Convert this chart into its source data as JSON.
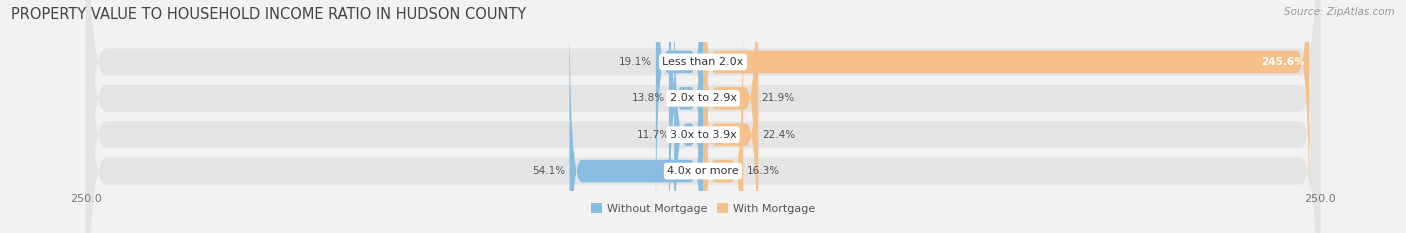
{
  "title": "PROPERTY VALUE TO HOUSEHOLD INCOME RATIO IN HUDSON COUNTY",
  "source": "Source: ZipAtlas.com",
  "categories": [
    "Less than 2.0x",
    "2.0x to 2.9x",
    "3.0x to 3.9x",
    "4.0x or more"
  ],
  "without_mortgage": [
    19.1,
    13.8,
    11.7,
    54.1
  ],
  "with_mortgage": [
    245.6,
    21.9,
    22.4,
    16.3
  ],
  "bar_color_left": "#89bde0",
  "bar_color_right": "#f5c08a",
  "background_color": "#f2f2f2",
  "row_bg_color": "#e4e4e4",
  "label_bg_color": "#ffffff",
  "xlim": 250.0,
  "legend_label_left": "Without Mortgage",
  "legend_label_right": "With Mortgage",
  "title_fontsize": 10.5,
  "source_fontsize": 7.5,
  "label_fontsize": 8,
  "value_fontsize": 7.5,
  "tick_fontsize": 8
}
